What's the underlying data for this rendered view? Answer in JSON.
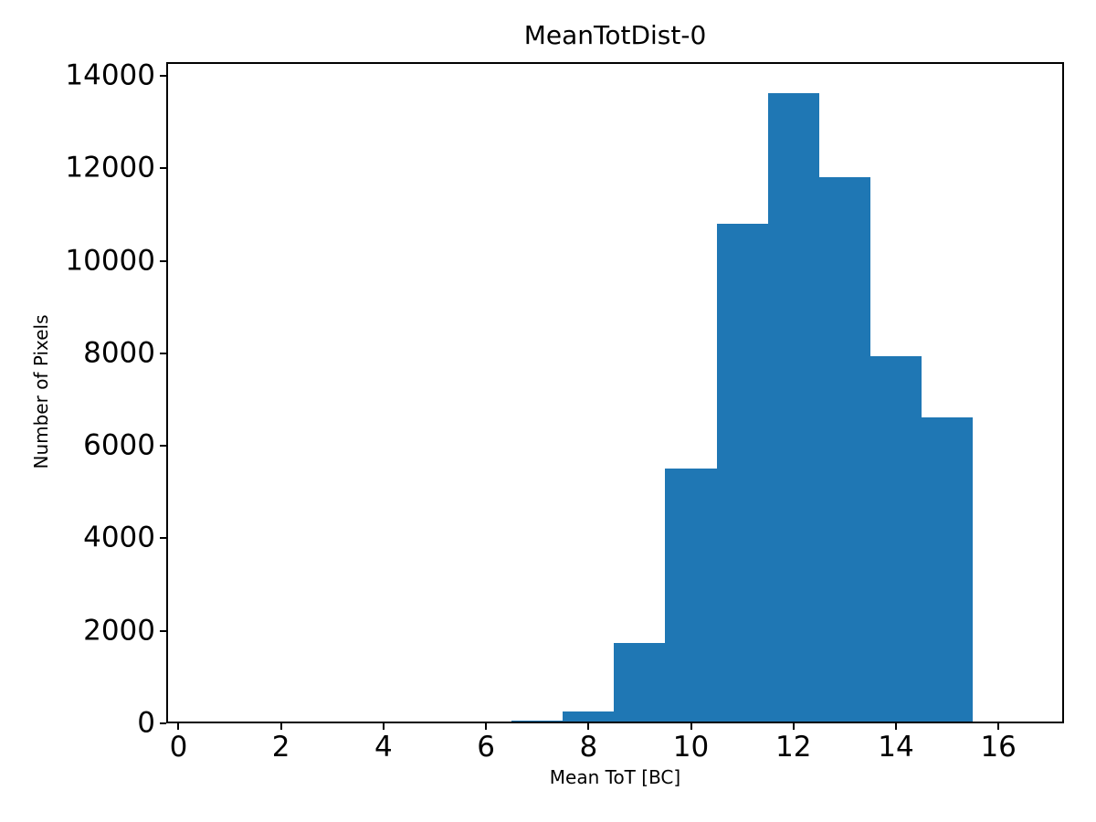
{
  "figure": {
    "title": "MeanTotDist-0",
    "xlabel": "Mean ToT [BC]",
    "ylabel": "Number of Pixels"
  },
  "chart_data": {
    "type": "bar",
    "subtype": "histogram",
    "title": "MeanTotDist-0",
    "xlabel": "Mean ToT [BC]",
    "ylabel": "Number of Pixels",
    "bar_color": "#1f77b4",
    "bin_width": 1.0,
    "bin_left_edges": [
      6.5,
      7.5,
      8.5,
      9.5,
      10.5,
      11.5,
      12.5,
      13.5,
      14.5
    ],
    "values": [
      50,
      250,
      1745,
      5515,
      10800,
      13635,
      11820,
      7945,
      6610
    ],
    "x_ticks": [
      0,
      2,
      4,
      6,
      8,
      10,
      12,
      14,
      16
    ],
    "y_ticks": [
      0,
      2000,
      4000,
      6000,
      8000,
      10000,
      12000,
      14000
    ],
    "xlim": [
      -0.24,
      17.28
    ],
    "ylim": [
      0,
      14300
    ],
    "grid": false,
    "legend_position": "none"
  }
}
